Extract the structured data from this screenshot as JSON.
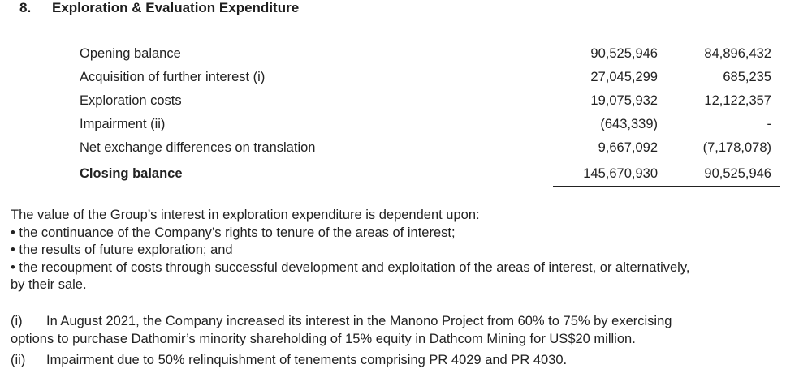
{
  "heading": {
    "number": "8.",
    "title": "Exploration & Evaluation Expenditure"
  },
  "rows": [
    {
      "label": "Opening balance",
      "col1": "90,525,946",
      "col2": "84,896,432"
    },
    {
      "label": "Acquisition of further interest (i)",
      "col1": "27,045,299",
      "col2": "685,235"
    },
    {
      "label": "Exploration costs",
      "col1": "19,075,932",
      "col2": "12,122,357"
    },
    {
      "label": "Impairment (ii)",
      "col1": "(643,339)",
      "col2": "-"
    },
    {
      "label": "Net exchange differences on translation",
      "col1": "9,667,092",
      "col2": "(7,178,078)"
    },
    {
      "label": "Closing balance",
      "col1": "145,670,930",
      "col2": "90,525,946"
    }
  ],
  "paragraph": {
    "intro": "The value of the Group’s interest in exploration expenditure is dependent upon:",
    "bullet1": "• the continuance of the Company’s rights to tenure of the areas of interest;",
    "bullet2": "• the results of future exploration; and",
    "bullet3": "• the recoupment of costs through successful development and exploitation of the areas of interest, or alternatively,",
    "bullet3_cont": "by their sale."
  },
  "notes": {
    "i_marker": "(i)",
    "i_line1": "In August 2021, the Company increased its interest in the Manono Project from 60% to 75% by exercising",
    "i_line2": "options to purchase Dathomir’s minority shareholding of 15% equity in Dathcom Mining for US$20 million.",
    "ii_marker": "(ii)",
    "ii_text": "Impairment due to 50% relinquishment of tenements comprising PR 4029 and PR 4030."
  }
}
